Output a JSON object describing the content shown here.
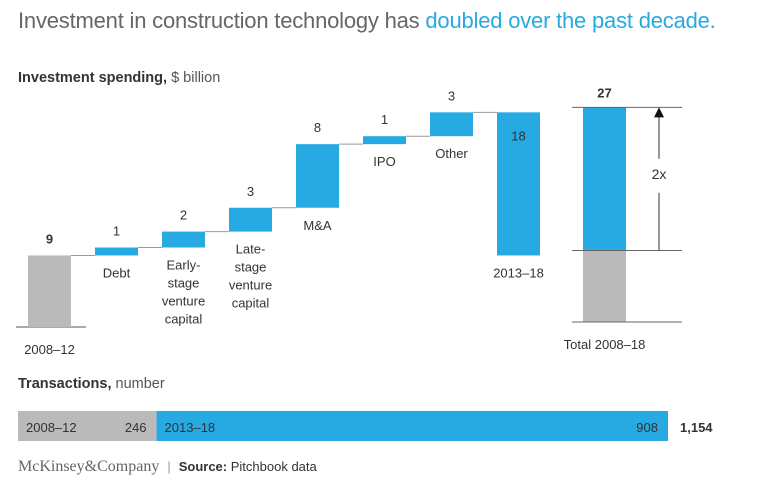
{
  "title": {
    "prefix": "Investment in construction technology has ",
    "highlight": "doubled over the past decade."
  },
  "colors": {
    "blue": "#27a9e1",
    "gray": "#bababa",
    "title_gray": "#666666"
  },
  "chart_data": [
    {
      "type": "waterfall",
      "title": "Investment spending,",
      "unit": "$ billion",
      "start": {
        "label": "2008–12",
        "value": 9
      },
      "steps": [
        {
          "label": "Debt",
          "value": 1
        },
        {
          "label": "Early-stage venture capital",
          "lines": [
            "Early-",
            "stage",
            "venture",
            "capital"
          ],
          "value": 2
        },
        {
          "label": "Late-stage venture capital",
          "lines": [
            "Late-",
            "stage",
            "venture",
            "capital"
          ],
          "value": 3
        },
        {
          "label": "M&A",
          "value": 8
        },
        {
          "label": "IPO",
          "value": 1
        },
        {
          "label": "Other",
          "value": 3
        }
      ],
      "subtotal": {
        "label": "2013–18",
        "value": 18
      },
      "total": {
        "label": "Total 2008–18",
        "value": 27,
        "segments": [
          {
            "name": "2008–12",
            "value": 9
          },
          {
            "name": "2013–18",
            "value": 18
          }
        ]
      },
      "annotation": "2x"
    },
    {
      "type": "stacked-bar",
      "title": "Transactions,",
      "unit": "number",
      "segments": [
        {
          "label": "2008–12",
          "value": 246
        },
        {
          "label": "2013–18",
          "value": 908
        }
      ],
      "total": "1,154"
    }
  ],
  "footer": {
    "logo": "McKinsey&Company",
    "source_label": "Source:",
    "source": "Pitchbook data"
  }
}
